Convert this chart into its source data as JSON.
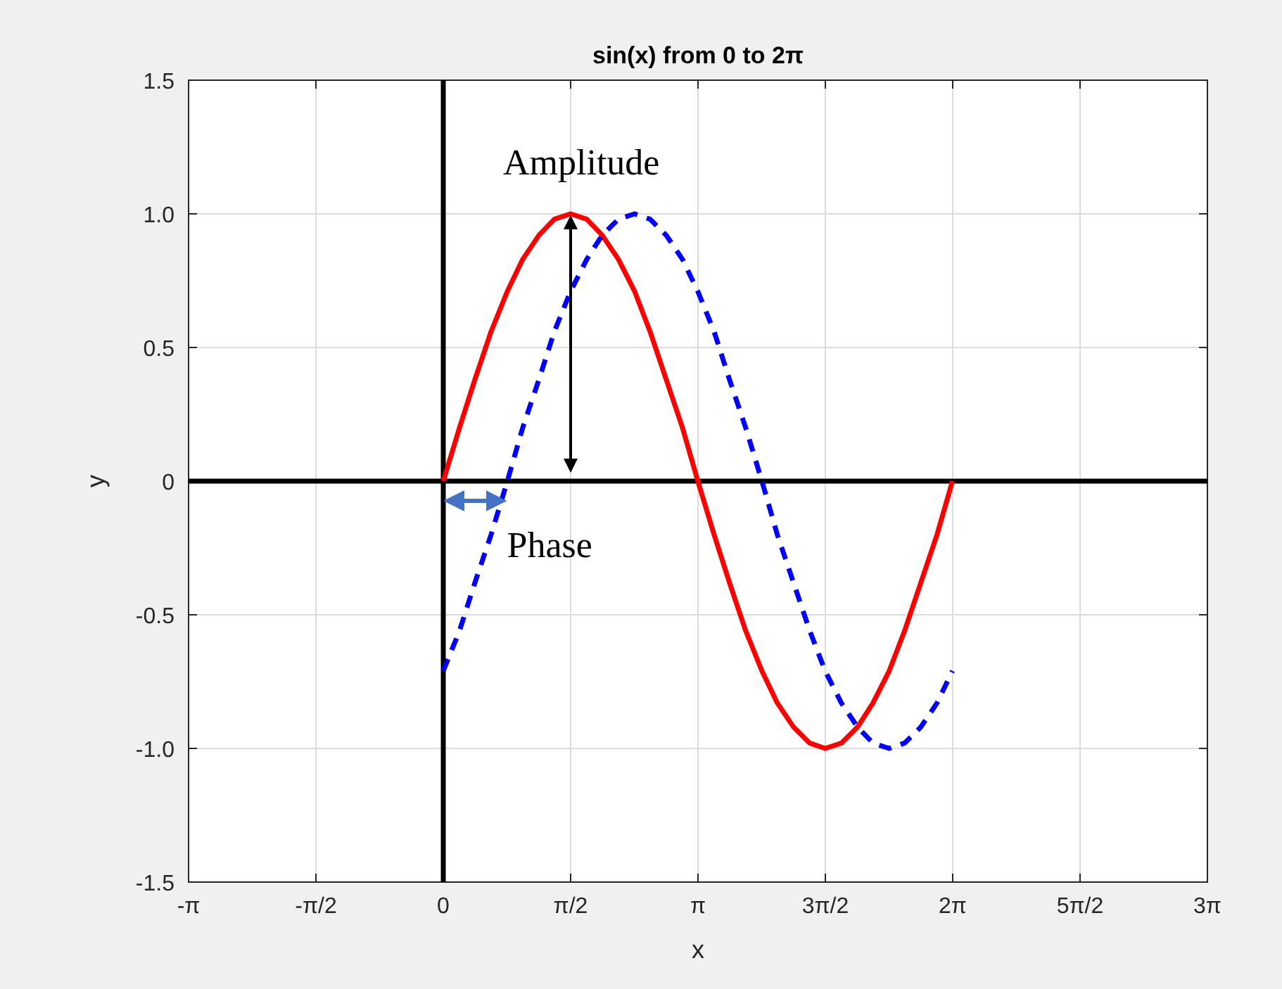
{
  "chart_data": {
    "type": "line",
    "title": "sin(x) from 0 to 2π",
    "xlabel": "x",
    "ylabel": "y",
    "x": [
      0,
      0.2,
      0.39,
      0.59,
      0.79,
      0.98,
      1.18,
      1.37,
      1.57,
      1.77,
      1.96,
      2.16,
      2.36,
      2.55,
      2.75,
      2.95,
      3.14,
      3.34,
      3.53,
      3.73,
      3.93,
      4.12,
      4.32,
      4.52,
      4.71,
      4.91,
      5.11,
      5.3,
      5.5,
      5.69,
      5.89,
      6.09,
      6.28
    ],
    "series": [
      {
        "color": "#000000",
        "line_style": "solid",
        "x": [
          0,
          0
        ],
        "values": [
          -1.5,
          1.5
        ]
      },
      {
        "color": "#000000",
        "line_style": "solid",
        "x": [
          -3.1416,
          9.4248
        ],
        "values": [
          0,
          0
        ]
      },
      {
        "color": "#ff0000",
        "line_style": "solid",
        "values": [
          0,
          0.2,
          0.38,
          0.56,
          0.71,
          0.83,
          0.92,
          0.98,
          1,
          0.98,
          0.92,
          0.83,
          0.71,
          0.56,
          0.38,
          0.2,
          0,
          -0.2,
          -0.38,
          -0.56,
          -0.71,
          -0.83,
          -0.92,
          -0.98,
          -1,
          -0.98,
          -0.92,
          -0.83,
          -0.71,
          -0.56,
          -0.38,
          -0.2,
          0
        ]
      },
      {
        "color": "#0000ff",
        "line_style": "dashed",
        "values": [
          -0.71,
          -0.56,
          -0.38,
          -0.2,
          0,
          0.2,
          0.38,
          0.56,
          0.71,
          0.83,
          0.92,
          0.98,
          1,
          0.98,
          0.92,
          0.83,
          0.71,
          0.56,
          0.38,
          0.2,
          0,
          -0.2,
          -0.38,
          -0.56,
          -0.71,
          -0.83,
          -0.92,
          -0.98,
          -1,
          -0.98,
          -0.92,
          -0.83,
          -0.71
        ]
      }
    ],
    "xlim": [
      -3.1416,
      9.4248
    ],
    "xticks": [
      {
        "value": -3.1416,
        "label": "-π"
      },
      {
        "value": -1.5708,
        "label": "-π/2"
      },
      0,
      {
        "value": 1.5708,
        "label": "π/2"
      },
      {
        "value": 3.1416,
        "label": "π"
      },
      {
        "value": 4.7124,
        "label": "3π/2"
      },
      {
        "value": 6.2832,
        "label": "2π"
      },
      {
        "value": 7.854,
        "label": "5π/2"
      },
      {
        "value": 9.4248,
        "label": "3π"
      }
    ],
    "ylim": [
      -1.5,
      1.5
    ],
    "yticks": [
      -1.5,
      {
        "value": -1,
        "label": "-1.0"
      },
      -0.5,
      0,
      0.5,
      {
        "value": 1,
        "label": "1.0"
      },
      1.5
    ],
    "grid": true,
    "annotations": [
      {
        "text": "Amplitude",
        "x": 1.5708,
        "y": 1
      },
      {
        "text": "Phase",
        "x": 0.7854,
        "y": 0
      }
    ]
  }
}
